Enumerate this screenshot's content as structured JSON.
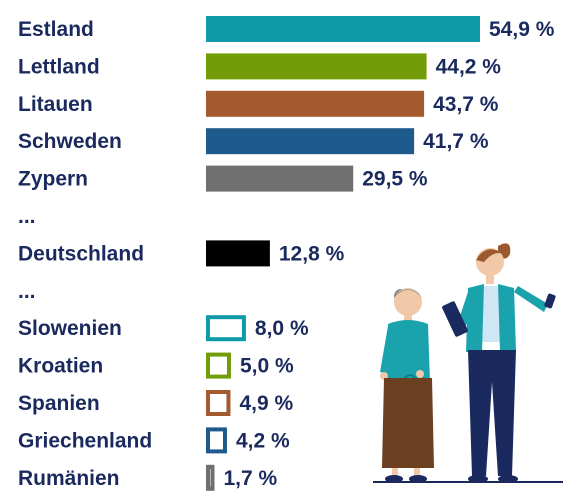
{
  "chart_data": {
    "type": "bar",
    "orientation": "horizontal",
    "categories": [
      "Estland",
      "Lettland",
      "Litauen",
      "Schweden",
      "Zypern",
      "...",
      "Deutschland",
      "...",
      "Slowenien",
      "Kroatien",
      "Spanien",
      "Griechenland",
      "Rumänien"
    ],
    "values": [
      54.9,
      44.2,
      43.7,
      41.7,
      29.5,
      null,
      12.8,
      null,
      8.0,
      5.0,
      4.9,
      4.2,
      1.7
    ],
    "value_labels": [
      "54,9 %",
      "44,2 %",
      "43,7 %",
      "41,7 %",
      "29,5 %",
      "",
      "12,8 %",
      "",
      "8,0 %",
      "5,0 %",
      "4,9 %",
      "4,2 %",
      "1,7 %"
    ],
    "bar_styles": [
      "filled",
      "filled",
      "filled",
      "filled",
      "filled",
      "gap",
      "filled",
      "gap",
      "outline",
      "outline",
      "outline",
      "outline",
      "outline"
    ],
    "colors": [
      "#0f9aa7",
      "#739c09",
      "#a45a2e",
      "#1f5a8d",
      "#707070",
      "",
      "#000000",
      "",
      "#0f9aa7",
      "#739c09",
      "#a45a2e",
      "#1f5a8d",
      "#707070"
    ],
    "xlim": [
      0,
      54.9
    ],
    "grid": false,
    "legend": "none",
    "title": "",
    "xlabel": "",
    "ylabel": ""
  },
  "illustration": {
    "icons": [
      "elderly-woman-icon",
      "young-woman-with-phone-icon"
    ]
  }
}
